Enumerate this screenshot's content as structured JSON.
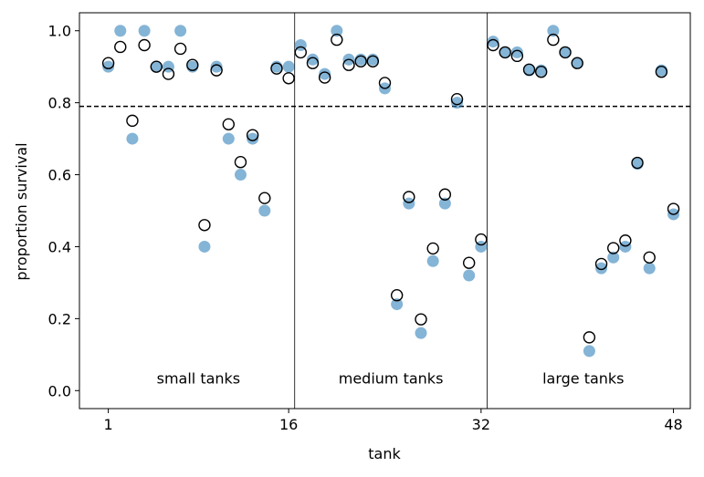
{
  "chart_data": {
    "type": "scatter",
    "title": "",
    "xlabel": "tank",
    "ylabel": "proportion survival",
    "xlim": [
      -1.4,
      49.4
    ],
    "ylim": [
      -0.05,
      1.05
    ],
    "xticks": [
      1,
      16,
      32,
      48
    ],
    "yticks": [
      0.0,
      0.2,
      0.4,
      0.6,
      0.8,
      1.0
    ],
    "ytick_labels": [
      "0.0",
      "0.2",
      "0.4",
      "0.6",
      "0.8",
      "1.0"
    ],
    "reference_line_y": 0.79,
    "group_dividers_x": [
      16.5,
      32.5
    ],
    "group_labels": [
      {
        "label": "small tanks",
        "x": 8.5,
        "y": 0.02
      },
      {
        "label": "medium tanks",
        "x": 24.5,
        "y": 0.02
      },
      {
        "label": "large tanks",
        "x": 40.5,
        "y": 0.02
      }
    ],
    "grid": false,
    "series": [
      {
        "marker": "filled-circle",
        "color": "#1f77b4",
        "x": [
          1,
          2,
          3,
          4,
          5,
          6,
          7,
          8,
          9,
          10,
          11,
          12,
          13,
          14,
          15,
          16,
          17,
          18,
          19,
          20,
          21,
          22,
          23,
          24,
          25,
          26,
          27,
          28,
          29,
          30,
          31,
          32,
          33,
          34,
          35,
          36,
          37,
          38,
          39,
          40,
          41,
          42,
          43,
          44,
          45,
          46,
          47,
          48
        ],
        "values": [
          0.9,
          1.0,
          0.7,
          1.0,
          0.9,
          0.9,
          1.0,
          0.9,
          0.4,
          0.9,
          0.7,
          0.6,
          0.7,
          0.5,
          0.9,
          0.9,
          0.96,
          0.92,
          0.88,
          1.0,
          0.92,
          0.92,
          0.92,
          0.84,
          0.24,
          0.52,
          0.16,
          0.36,
          0.52,
          0.8,
          0.32,
          0.4,
          0.97,
          0.94,
          0.94,
          0.89,
          0.89,
          1.0,
          0.94,
          0.91,
          0.11,
          0.34,
          0.37,
          0.4,
          0.63,
          0.34,
          0.89,
          0.49
        ]
      },
      {
        "marker": "open-circle",
        "color": "#000000",
        "x": [
          1,
          2,
          3,
          4,
          5,
          6,
          7,
          8,
          9,
          10,
          11,
          12,
          13,
          14,
          15,
          16,
          17,
          18,
          19,
          20,
          21,
          22,
          23,
          24,
          25,
          26,
          27,
          28,
          29,
          30,
          31,
          32,
          33,
          34,
          35,
          36,
          37,
          38,
          39,
          40,
          41,
          42,
          43,
          44,
          45,
          46,
          47,
          48
        ],
        "values": [
          0.91,
          0.955,
          0.75,
          0.96,
          0.9,
          0.88,
          0.95,
          0.905,
          0.46,
          0.89,
          0.74,
          0.635,
          0.71,
          0.535,
          0.895,
          0.868,
          0.94,
          0.91,
          0.87,
          0.975,
          0.905,
          0.915,
          0.915,
          0.855,
          0.265,
          0.538,
          0.198,
          0.395,
          0.545,
          0.81,
          0.355,
          0.42,
          0.96,
          0.94,
          0.93,
          0.892,
          0.886,
          0.975,
          0.94,
          0.91,
          0.148,
          0.352,
          0.396,
          0.417,
          0.633,
          0.37,
          0.886,
          0.505
        ]
      }
    ]
  }
}
